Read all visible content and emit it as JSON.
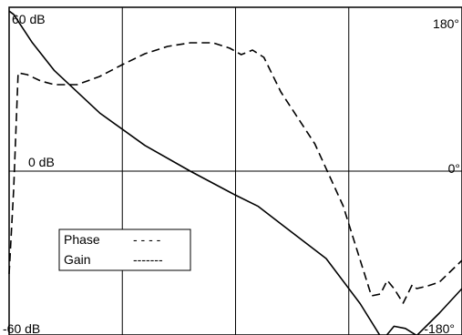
{
  "chart_data": {
    "type": "line",
    "title": "",
    "xlabel": "",
    "left_axis": {
      "top_label": "60 dB",
      "zero_label": "0 dB",
      "bottom_label": "-60 dB",
      "ylim": [
        -60,
        60
      ]
    },
    "right_axis": {
      "top_label": "180°",
      "zero_label": "0°",
      "bottom_label": "-180°",
      "ylim": [
        -180,
        180
      ]
    },
    "xlim": [
      0,
      4
    ],
    "grid": true,
    "vertical_gridlines": [
      1,
      2,
      3
    ],
    "legend": {
      "placement": "lower-left",
      "entries": [
        {
          "label": "Phase",
          "sample": "- - - -"
        },
        {
          "label": "Gain",
          "sample": "-------"
        }
      ]
    },
    "series": [
      {
        "name": "Gain",
        "axis": "left",
        "line_style": "solid",
        "x": [
          0.0,
          0.04,
          0.2,
          0.4,
          0.8,
          1.2,
          1.6,
          2.0,
          2.2,
          2.4,
          2.8,
          3.1,
          3.3,
          3.4,
          3.5,
          3.6,
          3.8,
          4.0
        ],
        "y": [
          58.6,
          57.4,
          47.3,
          36.8,
          21.3,
          9.4,
          0.0,
          -8.8,
          -12.9,
          -19.3,
          -32.0,
          -48.5,
          -61.8,
          -56.8,
          -57.6,
          -60.2,
          -52.0,
          -43.0
        ]
      },
      {
        "name": "Phase",
        "axis": "right",
        "line_style": "dashed",
        "x": [
          0.0,
          0.04,
          0.08,
          0.16,
          0.28,
          0.4,
          0.6,
          0.8,
          1.0,
          1.2,
          1.4,
          1.6,
          1.8,
          1.95,
          2.05,
          2.15,
          2.25,
          2.4,
          2.7,
          2.95,
          3.2,
          3.28,
          3.34,
          3.4,
          3.48,
          3.56,
          3.6,
          3.7,
          3.8,
          4.0
        ],
        "y": [
          -113,
          -20,
          108,
          106,
          99,
          95,
          95,
          104,
          117,
          129,
          137,
          141,
          141,
          135,
          128,
          133,
          125,
          87,
          30,
          -38,
          -137,
          -135,
          -120,
          -129,
          -145,
          -125,
          -129,
          -126,
          -122,
          -98
        ]
      }
    ]
  }
}
